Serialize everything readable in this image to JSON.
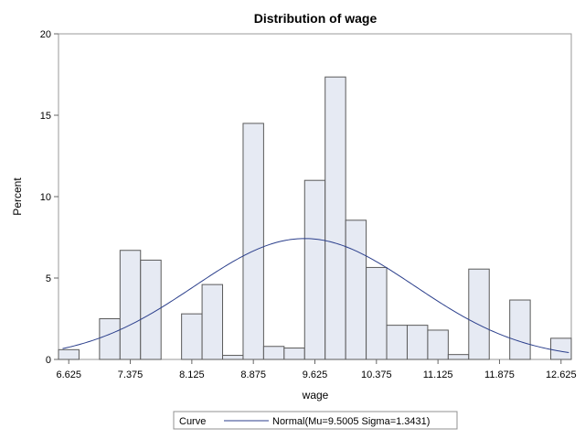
{
  "chart_data": {
    "type": "bar",
    "title": "Distribution of wage",
    "xlabel": "wage",
    "ylabel": "Percent",
    "bin_width": 0.25,
    "bin_centers": [
      6.625,
      6.875,
      7.125,
      7.375,
      7.625,
      7.875,
      8.125,
      8.375,
      8.625,
      8.875,
      9.125,
      9.375,
      9.625,
      9.875,
      10.125,
      10.375,
      10.625,
      10.875,
      11.125,
      11.375,
      11.625,
      11.875,
      12.125,
      12.375,
      12.625
    ],
    "values": [
      0.6,
      0,
      2.5,
      6.7,
      6.1,
      0,
      2.8,
      4.6,
      0.25,
      14.5,
      0.8,
      0.7,
      11.0,
      17.35,
      8.55,
      5.65,
      2.1,
      2.1,
      1.8,
      0.3,
      5.55,
      0,
      3.65,
      0,
      1.3
    ],
    "xlim": [
      6.5,
      12.75
    ],
    "ylim": [
      0,
      20
    ],
    "x_ticks": [
      "6.625",
      "7.375",
      "8.125",
      "8.875",
      "9.625",
      "10.375",
      "11.125",
      "11.875",
      "12.625"
    ],
    "y_ticks": [
      "0",
      "5",
      "10",
      "15",
      "20"
    ],
    "grid": false,
    "bar_fill": "#e6eaf3",
    "bar_stroke": "#5a5a5a",
    "curve": {
      "label": "Normal(Mu=9.5005 Sigma=1.3431)",
      "mu": 9.5005,
      "sigma": 1.3431,
      "color": "#2b3f8c"
    },
    "legend": {
      "title": "Curve",
      "position": "bottom"
    }
  }
}
